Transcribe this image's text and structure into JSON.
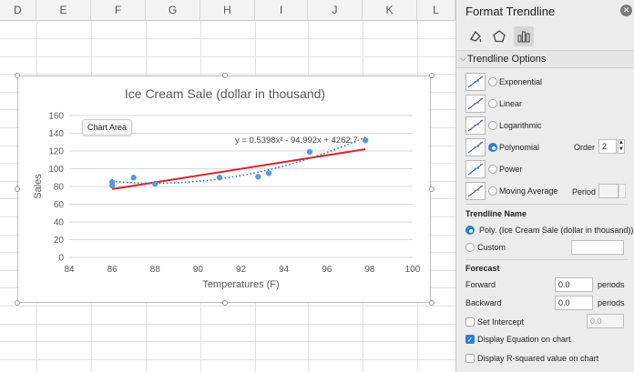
{
  "sheet": {
    "columns": [
      "D",
      "E",
      "F",
      "G",
      "H",
      "I",
      "J",
      "K",
      "L"
    ]
  },
  "chart": {
    "tooltip": "Chart Area",
    "equation": "y = 0.5398x² - 94.992x + 4262.7"
  },
  "chart_data": {
    "type": "scatter",
    "title": "Ice Cream Sale (dollar in thousand)",
    "xlabel": "Temperatures (F)",
    "ylabel": "Sales",
    "xlim": [
      84,
      100
    ],
    "ylim": [
      0,
      160
    ],
    "xticks": [
      84,
      86,
      88,
      90,
      92,
      94,
      96,
      98,
      100
    ],
    "yticks": [
      0,
      20,
      40,
      60,
      80,
      100,
      120,
      140,
      160
    ],
    "grid": true,
    "points": [
      {
        "x": 86.0,
        "y": 85
      },
      {
        "x": 86.0,
        "y": 81
      },
      {
        "x": 87.0,
        "y": 90
      },
      {
        "x": 88.0,
        "y": 83
      },
      {
        "x": 91.0,
        "y": 90
      },
      {
        "x": 92.8,
        "y": 91
      },
      {
        "x": 93.3,
        "y": 95
      },
      {
        "x": 95.2,
        "y": 119
      },
      {
        "x": 97.8,
        "y": 132
      }
    ],
    "linear_trend": {
      "x": [
        86,
        97.8
      ],
      "y": [
        77,
        122
      ]
    },
    "poly_trend": {
      "a": 0.5398,
      "b": -94.992,
      "c": 4262.7
    },
    "colors": {
      "points": "#5b9bd5",
      "linear": "#d9262b",
      "poly": "#2e75b6"
    }
  },
  "pane": {
    "title": "Format Trendline",
    "close_icon": "close-icon",
    "tabs": [
      "fill-line-icon",
      "effects-icon",
      "trendline-options-icon"
    ],
    "section": "Trendline Options",
    "types": [
      {
        "label": "Exponential",
        "selected": false
      },
      {
        "label": "Linear",
        "selected": false
      },
      {
        "label": "Logarithmic",
        "selected": false
      },
      {
        "label": "Polynomial",
        "selected": true
      },
      {
        "label": "Power",
        "selected": false
      },
      {
        "label": "Moving Average",
        "selected": false
      }
    ],
    "order_label": "Order",
    "order_value": "2",
    "period_label": "Period",
    "period_value": "",
    "name_header": "Trendline Name",
    "name_auto": "Poly. (Ice Cream Sale (dollar in thousand))",
    "name_custom": "Custom",
    "name_custom_value": "",
    "forecast_header": "Forecast",
    "forward_label": "Forward",
    "forward_value": "0.0",
    "forward_unit": "periods",
    "backward_label": "Backward",
    "backward_value": "0.0",
    "backward_unit": "periods",
    "intercept_label": "Set Intercept",
    "intercept_value": "0.0",
    "display_eq_label": "Display Equation on chart",
    "display_eq_checked": true,
    "display_r2_label": "Display R-squared value on chart",
    "display_r2_checked": false,
    "accent": "#2f7fd3"
  }
}
